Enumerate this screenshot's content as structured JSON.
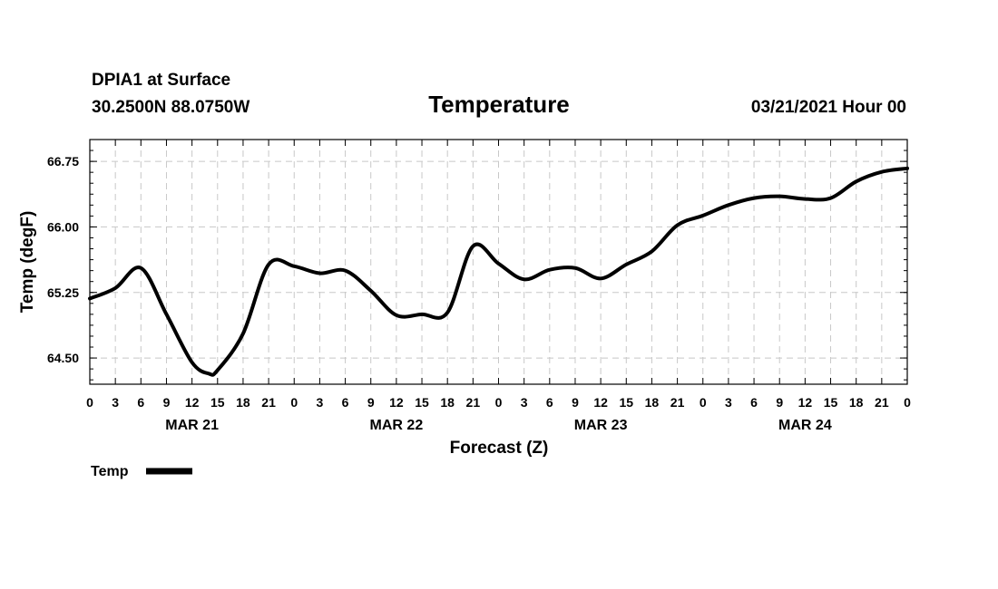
{
  "header": {
    "station": "DPIA1 at Surface",
    "location": "30.2500N 88.0750W",
    "title": "Temperature",
    "run": "03/21/2021 Hour 00"
  },
  "chart_data": {
    "type": "line",
    "title": "Temperature",
    "xlabel": "Forecast (Z)",
    "ylabel": "Temp (degF)",
    "x_unit": "forecast hour from 03/21/2021 00Z",
    "xlim": [
      0,
      96
    ],
    "ylim": [
      64.2,
      67.0
    ],
    "yticks": [
      64.5,
      65.25,
      66.0,
      66.75
    ],
    "ytick_labels": [
      "64.50",
      "65.25",
      "66.00",
      "66.75"
    ],
    "xticks": [
      0,
      3,
      6,
      9,
      12,
      15,
      18,
      21,
      24,
      27,
      30,
      33,
      36,
      39,
      42,
      45,
      48,
      51,
      54,
      57,
      60,
      63,
      66,
      69,
      72,
      75,
      78,
      81,
      84,
      87,
      90,
      93,
      96
    ],
    "xtick_labels": [
      "0",
      "3",
      "6",
      "9",
      "12",
      "15",
      "18",
      "21",
      "0",
      "3",
      "6",
      "9",
      "12",
      "15",
      "18",
      "21",
      "0",
      "3",
      "6",
      "9",
      "12",
      "15",
      "18",
      "21",
      "0",
      "3",
      "6",
      "9",
      "12",
      "15",
      "18",
      "21",
      "0"
    ],
    "day_labels": [
      {
        "label": "MAR 21",
        "x": 12
      },
      {
        "label": "MAR 22",
        "x": 36
      },
      {
        "label": "MAR 23",
        "x": 60
      },
      {
        "label": "MAR 24",
        "x": 84
      }
    ],
    "grid": true,
    "legend": [
      {
        "name": "Temp",
        "style": "thick solid black"
      }
    ],
    "series": [
      {
        "name": "Temp",
        "x": [
          0,
          3,
          6,
          9,
          12,
          14,
          15,
          18,
          21,
          24,
          27,
          30,
          33,
          36,
          39,
          42,
          45,
          48,
          51,
          54,
          57,
          60,
          63,
          66,
          69,
          72,
          75,
          78,
          81,
          84,
          87,
          90,
          93,
          96
        ],
        "values": [
          65.18,
          65.3,
          65.53,
          65.0,
          64.45,
          64.32,
          64.36,
          64.78,
          65.57,
          65.55,
          65.47,
          65.5,
          65.27,
          64.99,
          65.0,
          65.02,
          65.78,
          65.58,
          65.4,
          65.51,
          65.53,
          65.41,
          65.57,
          65.72,
          66.02,
          66.13,
          66.25,
          66.33,
          66.35,
          66.32,
          66.33,
          66.52,
          66.63,
          66.67
        ]
      }
    ]
  }
}
